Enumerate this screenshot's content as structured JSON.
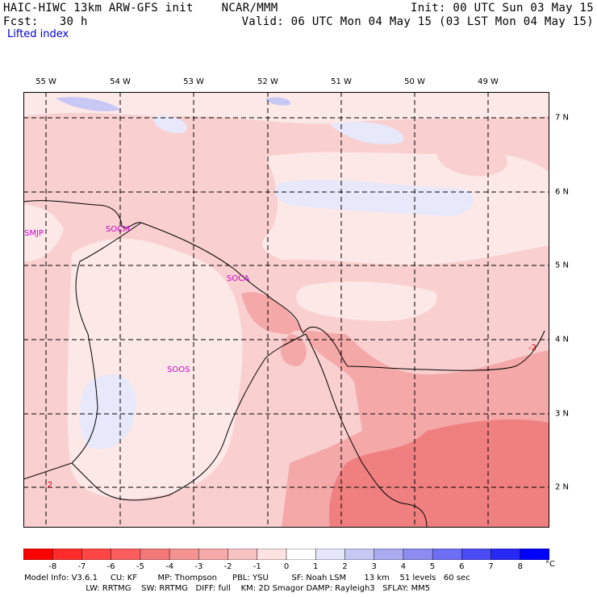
{
  "header": {
    "left_line1": "HAIC-HIWC 13km ARW-GFS init    NCAR/MMM",
    "left_line2": "Fcst:   30 h",
    "right_line1": "Init: 00 UTC Sun 03 May 15",
    "right_line2": "Valid: 06 UTC Mon 04 May 15 (03 LST Mon 04 May 15)",
    "field_name": "Lifted index"
  },
  "map": {
    "longitude_labels": [
      "55 W",
      "54 W",
      "53 W",
      "52 W",
      "51 W",
      "50 W",
      "49 W"
    ],
    "latitude_labels": [
      "7 N",
      "6 N",
      "5 N",
      "4 N",
      "3 N",
      "2 N"
    ],
    "stations": [
      "SMJP",
      "SOCM",
      "SOCA",
      "SOOS"
    ],
    "contour_labels": [
      "-2",
      "-2"
    ],
    "colors": {
      "strong_red": "#f08080",
      "medium_red": "#f5a8a8",
      "light_red": "#f9cfcf",
      "pale_red": "#fde8e8",
      "pale_blue": "#e8e8fb",
      "light_blue": "#c8c8f5"
    }
  },
  "colorbar": {
    "tick_labels": [
      "-8",
      "-7",
      "-6",
      "-5",
      "-4",
      "-3",
      "-2",
      "-1",
      "0",
      "1",
      "2",
      "3",
      "4",
      "5",
      "6",
      "7",
      "8"
    ],
    "unit": "°C",
    "colors": [
      "#ff0000",
      "#ff2b2b",
      "#ff4545",
      "#ff5e5e",
      "#f57878",
      "#f59393",
      "#f7aaaa",
      "#f9c3c3",
      "#fde2e2",
      "#ffffff",
      "#e6e6fb",
      "#c8c8f5",
      "#aaaaf0",
      "#8c8cf0",
      "#6e6ef5",
      "#4b4bf5",
      "#2828f5",
      "#0000ff"
    ]
  },
  "footer": {
    "line1": "Model Info: V3.6.1     CU: KF        MP: Thompson      PBL: YSU         SF: Noah LSM       13 km    51 levels   60 sec",
    "line2": "                        LW: RRTMG    SW: RRTMG   DIFF: full    KM: 2D Smagor DAMP: Rayleigh3   SFLAY: MM5"
  }
}
